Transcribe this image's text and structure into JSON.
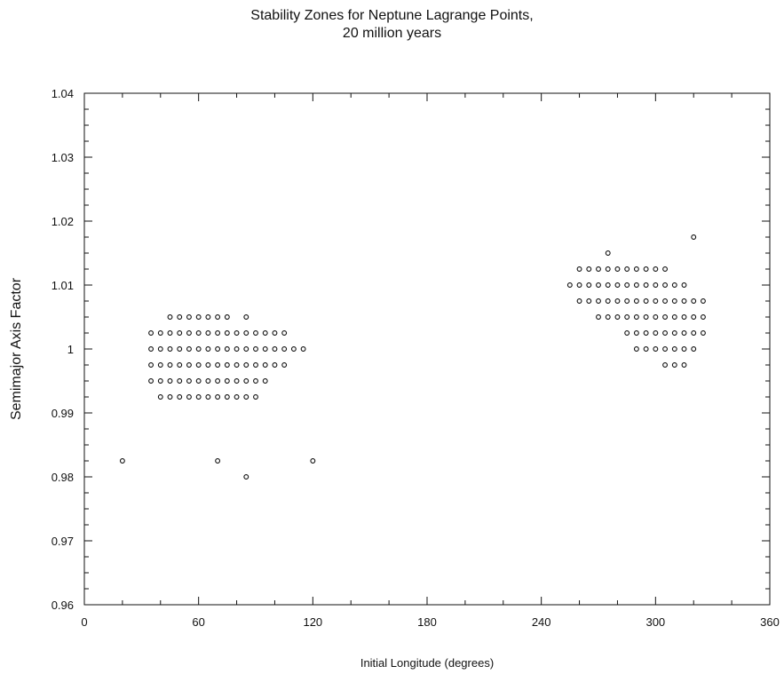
{
  "chart_data": {
    "type": "scatter",
    "title_line1": "Stability Zones for Neptune Lagrange Points,",
    "title_line2": "20 million years",
    "xlabel": "Initial Longitude (degrees)",
    "ylabel": "Semimajor Axis Factor",
    "xlim": [
      0,
      360
    ],
    "ylim": [
      0.96,
      1.04
    ],
    "xticks": [
      0,
      60,
      120,
      180,
      240,
      300,
      360
    ],
    "xtick_labels": [
      "0",
      "60",
      "120",
      "180",
      "240",
      "300",
      "360"
    ],
    "yticks": [
      0.96,
      0.97,
      0.98,
      0.99,
      1.0,
      1.01,
      1.02,
      1.03,
      1.04
    ],
    "ytick_labels": [
      "0.96",
      "0.97",
      "0.98",
      "0.99",
      "1",
      "1.01",
      "1.02",
      "1.03",
      "1.04"
    ],
    "grid": false,
    "marker": "open-circle",
    "rows": [
      {
        "y": 1.005,
        "x": [
          45,
          50,
          55,
          60,
          65,
          70,
          75,
          85
        ]
      },
      {
        "y": 1.0025,
        "x": [
          35,
          40,
          45,
          50,
          55,
          60,
          65,
          70,
          75,
          80,
          85,
          90,
          95,
          100,
          105
        ]
      },
      {
        "y": 1.0,
        "x": [
          35,
          40,
          45,
          50,
          55,
          60,
          65,
          70,
          75,
          80,
          85,
          90,
          95,
          100,
          105,
          110,
          115
        ]
      },
      {
        "y": 0.9975,
        "x": [
          35,
          40,
          45,
          50,
          55,
          60,
          65,
          70,
          75,
          80,
          85,
          90,
          95,
          100,
          105
        ]
      },
      {
        "y": 0.995,
        "x": [
          35,
          40,
          45,
          50,
          55,
          60,
          65,
          70,
          75,
          80,
          85,
          90,
          95
        ]
      },
      {
        "y": 0.9925,
        "x": [
          40,
          45,
          50,
          55,
          60,
          65,
          70,
          75,
          80,
          85,
          90
        ]
      },
      {
        "y": 0.9825,
        "x": [
          20,
          70,
          120
        ]
      },
      {
        "y": 0.98,
        "x": [
          85
        ]
      },
      {
        "y": 1.0175,
        "x": [
          320
        ]
      },
      {
        "y": 1.015,
        "x": [
          275
        ]
      },
      {
        "y": 1.0125,
        "x": [
          260,
          265,
          270,
          275,
          280,
          285,
          290,
          295,
          300,
          305
        ]
      },
      {
        "y": 1.01,
        "x": [
          255,
          260,
          265,
          270,
          275,
          280,
          285,
          290,
          295,
          300,
          305,
          310,
          315
        ]
      },
      {
        "y": 1.0075,
        "x": [
          260,
          265,
          270,
          275,
          280,
          285,
          290,
          295,
          300,
          305,
          310,
          315,
          320,
          325
        ]
      },
      {
        "y": 1.005,
        "x": [
          270,
          275,
          280,
          285,
          290,
          295,
          300,
          305,
          310,
          315,
          320,
          325
        ]
      },
      {
        "y": 1.0025,
        "x": [
          285,
          290,
          295,
          300,
          305,
          310,
          315,
          320,
          325
        ]
      },
      {
        "y": 1.0,
        "x": [
          290,
          295,
          300,
          305,
          310,
          315,
          320
        ]
      },
      {
        "y": 0.9975,
        "x": [
          305,
          310,
          315
        ]
      }
    ]
  }
}
